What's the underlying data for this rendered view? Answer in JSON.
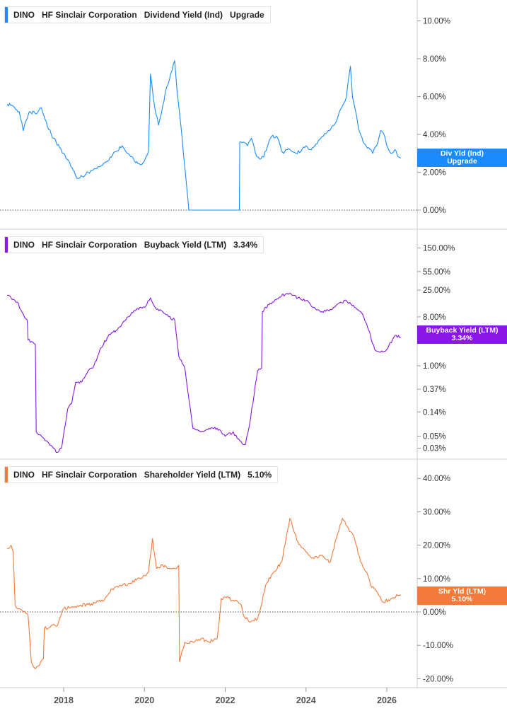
{
  "ticker": "DINO",
  "company": "HF Sinclair Corporation",
  "colors": {
    "dividend": "#1a8cff",
    "buyback": "#8a17e6",
    "shareholder": "#f27a3a",
    "grid": "#cfcfcf"
  },
  "panels": [
    {
      "metric": "Dividend Yield (Ind)",
      "legend_value": "Upgrade",
      "tag_line1": "Div Yld (Ind)",
      "tag_line2": "Upgrade",
      "ticks": [
        "10.00%",
        "8.00%",
        "6.00%",
        "4.00%",
        "2.00%",
        "0.00%"
      ]
    },
    {
      "metric": "Buyback Yield (LTM)",
      "legend_value": "3.34%",
      "tag_line1": "Buyback Yield (LTM)",
      "tag_line2": "3.34%",
      "ticks": [
        "150.00%",
        "55.00%",
        "25.00%",
        "8.00%",
        "1.00%",
        "0.37%",
        "0.14%",
        "0.05%",
        "0.03%"
      ]
    },
    {
      "metric": "Shareholder Yield (LTM)",
      "legend_value": "5.10%",
      "tag_line1": "Shr Yld (LTM)",
      "tag_line2": "5.10%",
      "ticks": [
        "40.00%",
        "30.00%",
        "20.00%",
        "10.00%",
        "0.00%",
        "-10.00%",
        "-20.00%"
      ]
    }
  ],
  "x_ticks": [
    "2018",
    "2020",
    "2022",
    "2024",
    "2026"
  ],
  "chart_data": [
    {
      "type": "line",
      "series": [
        {
          "name": "Dividend Yield (Ind)"
        }
      ],
      "yscale": "linear",
      "ylim": [
        0,
        11
      ],
      "xlim": [
        2016.6,
        2026.4
      ],
      "x": [
        2016.6,
        2016.75,
        2016.9,
        2017.0,
        2017.15,
        2017.3,
        2017.45,
        2017.6,
        2017.75,
        2017.9,
        2018.0,
        2018.15,
        2018.3,
        2018.4,
        2018.55,
        2018.7,
        2018.85,
        2019.0,
        2019.15,
        2019.3,
        2019.45,
        2019.6,
        2019.75,
        2019.9,
        2020.0,
        2020.1,
        2020.15,
        2020.25,
        2020.35,
        2020.45,
        2020.55,
        2020.65,
        2020.75,
        2020.8,
        2020.85,
        2020.9,
        2021.1,
        2021.3,
        2021.5,
        2021.7,
        2021.9,
        2022.1,
        2022.35,
        2022.36,
        2022.45,
        2022.55,
        2022.65,
        2022.75,
        2022.85,
        2022.95,
        2023.05,
        2023.15,
        2023.3,
        2023.4,
        2023.45,
        2023.5,
        2023.6,
        2023.75,
        2023.9,
        2024.0,
        2024.1,
        2024.25,
        2024.4,
        2024.55,
        2024.7,
        2024.8,
        2024.9,
        2025.0,
        2025.1,
        2025.15,
        2025.2,
        2025.25,
        2025.3,
        2025.35,
        2025.45,
        2025.55,
        2025.65,
        2025.75,
        2025.85,
        2025.95,
        2026.0,
        2026.1,
        2026.2,
        2026.3,
        2026.35
      ],
      "values": [
        5.6,
        5.5,
        5.2,
        4.2,
        5.2,
        5.1,
        5.4,
        4.4,
        3.8,
        3.3,
        3.0,
        2.5,
        1.8,
        1.7,
        1.9,
        2.1,
        2.3,
        2.5,
        2.8,
        3.1,
        3.4,
        3.0,
        2.6,
        2.4,
        2.6,
        3.1,
        7.2,
        5.5,
        4.5,
        5.5,
        6.5,
        7.2,
        7.9,
        6.5,
        5.5,
        4.5,
        0,
        0,
        0,
        0,
        0,
        0,
        0,
        3.6,
        3.6,
        3.4,
        3.8,
        3.0,
        2.7,
        2.8,
        3.4,
        3.9,
        3.8,
        3.1,
        3.0,
        3.2,
        3.2,
        3.0,
        3.2,
        3.4,
        3.2,
        3.5,
        3.9,
        4.2,
        4.5,
        5.0,
        5.5,
        6.0,
        7.6,
        6.0,
        5.5,
        5.0,
        4.3,
        4.0,
        3.5,
        3.3,
        3.0,
        3.4,
        4.2,
        3.9,
        3.4,
        3.0,
        3.2,
        2.8,
        2.75
      ]
    },
    {
      "type": "line",
      "series": [
        {
          "name": "Buyback Yield (LTM)"
        }
      ],
      "yscale": "log",
      "ylim": [
        0.03,
        150
      ],
      "xlim": [
        2016.6,
        2026.4
      ],
      "x": [
        2016.6,
        2016.7,
        2016.85,
        2017.0,
        2017.1,
        2017.12,
        2017.2,
        2017.3,
        2017.32,
        2017.45,
        2017.6,
        2017.75,
        2017.85,
        2017.95,
        2018.1,
        2018.2,
        2018.3,
        2018.45,
        2018.6,
        2018.75,
        2018.9,
        2019.1,
        2019.3,
        2019.45,
        2019.6,
        2019.8,
        2020.0,
        2020.15,
        2020.3,
        2020.45,
        2020.6,
        2020.75,
        2020.85,
        2021.0,
        2021.2,
        2021.4,
        2021.6,
        2021.8,
        2022.0,
        2022.2,
        2022.3,
        2022.45,
        2022.5,
        2022.6,
        2022.8,
        2022.9,
        2022.92,
        2023.0,
        2023.2,
        2023.4,
        2023.6,
        2023.8,
        2024.0,
        2024.2,
        2024.4,
        2024.6,
        2024.8,
        2025.0,
        2025.2,
        2025.35,
        2025.4,
        2025.5,
        2025.7,
        2025.9,
        2026.0,
        2026.2,
        2026.35
      ],
      "values": [
        20,
        18,
        15,
        9,
        7,
        3.0,
        2.8,
        2.5,
        0.06,
        0.05,
        0.04,
        0.03,
        0.025,
        0.03,
        0.16,
        0.2,
        0.5,
        0.5,
        0.8,
        1.0,
        2.0,
        3.5,
        4.5,
        6.0,
        8.0,
        11.0,
        12.0,
        18.0,
        11.0,
        10.0,
        8.0,
        7.0,
        1.5,
        0.9,
        0.07,
        0.06,
        0.07,
        0.07,
        0.05,
        0.06,
        0.045,
        0.035,
        0.035,
        0.08,
        0.8,
        0.9,
        10.0,
        12.0,
        15.0,
        20.0,
        22.0,
        18.0,
        16.0,
        12.0,
        10.0,
        11.0,
        14.0,
        16.0,
        12.0,
        10.0,
        9.0,
        6.0,
        2.0,
        1.8,
        2.0,
        3.6,
        3.34
      ]
    },
    {
      "type": "line",
      "series": [
        {
          "name": "Shareholder Yield (LTM)"
        }
      ],
      "yscale": "linear",
      "ylim": [
        -22,
        42
      ],
      "xlim": [
        2016.6,
        2026.4
      ],
      "x": [
        2016.6,
        2016.7,
        2016.75,
        2016.8,
        2016.9,
        2017.0,
        2017.1,
        2017.12,
        2017.2,
        2017.3,
        2017.4,
        2017.5,
        2017.52,
        2017.7,
        2017.85,
        2017.9,
        2018.0,
        2018.2,
        2018.4,
        2018.6,
        2018.8,
        2019.0,
        2019.2,
        2019.4,
        2019.6,
        2019.8,
        2020.0,
        2020.1,
        2020.2,
        2020.3,
        2020.45,
        2020.6,
        2020.75,
        2020.85,
        2020.87,
        2021.0,
        2021.2,
        2021.4,
        2021.6,
        2021.8,
        2021.85,
        2021.9,
        2022.0,
        2022.2,
        2022.4,
        2022.45,
        2022.6,
        2022.8,
        2022.85,
        2023.0,
        2023.2,
        2023.4,
        2023.6,
        2023.8,
        2024.0,
        2024.2,
        2024.4,
        2024.6,
        2024.75,
        2024.9,
        2025.05,
        2025.2,
        2025.35,
        2025.5,
        2025.6,
        2025.75,
        2025.9,
        2026.1,
        2026.3,
        2026.35
      ],
      "values": [
        19,
        20,
        18,
        2,
        1,
        0,
        -0.5,
        -1,
        -15,
        -17,
        -16,
        -14,
        -5,
        -4,
        -4,
        -2,
        1,
        1.5,
        2,
        2.2,
        2.8,
        3.5,
        7,
        8,
        8.5,
        9.5,
        11,
        12,
        22,
        13,
        14,
        13,
        13,
        14,
        -15,
        -9,
        -9,
        -8,
        -9,
        -8,
        -3,
        4,
        4.5,
        3.5,
        2,
        -1,
        -3,
        -2,
        0,
        8,
        12,
        15,
        28,
        21,
        18,
        16,
        17,
        15,
        22,
        28,
        25,
        22,
        15,
        12,
        8,
        6,
        3,
        4,
        5,
        5.1
      ]
    }
  ]
}
